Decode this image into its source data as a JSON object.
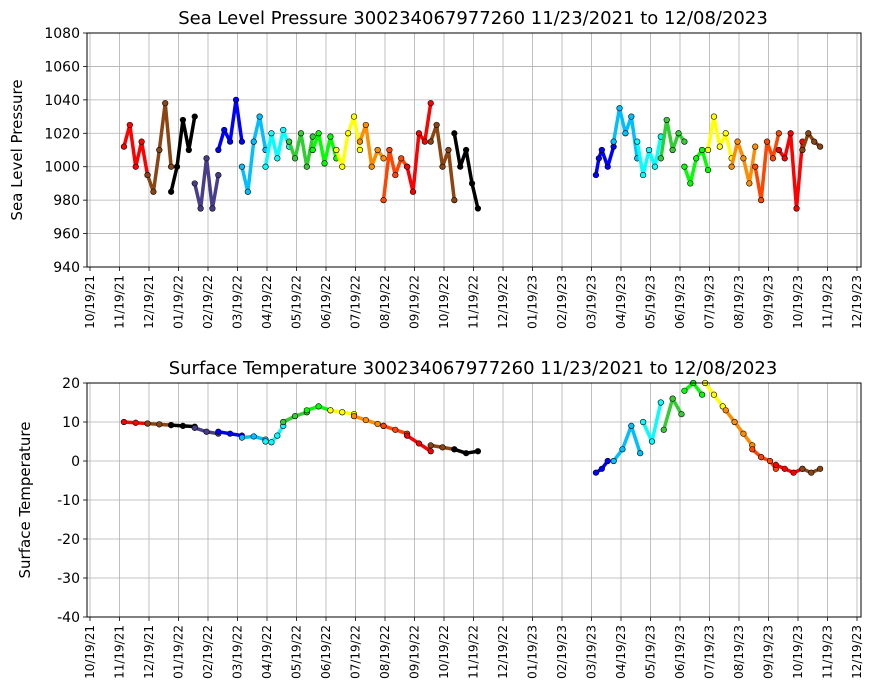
{
  "chart_data": [
    {
      "type": "scatter",
      "title": "Sea Level Pressure 300234067977260  11/23/2021 to 12/08/2023",
      "xlabel": "",
      "ylabel": "Sea Level Pressure",
      "xticks": [
        "10/19/21",
        "11/19/21",
        "12/19/21",
        "01/19/22",
        "02/19/22",
        "03/19/22",
        "04/19/22",
        "05/19/22",
        "06/19/22",
        "07/19/22",
        "08/19/22",
        "09/19/22",
        "10/19/22",
        "11/19/22",
        "12/19/22",
        "01/19/23",
        "02/19/23",
        "03/19/23",
        "04/19/23",
        "05/19/23",
        "06/19/23",
        "07/19/23",
        "08/19/23",
        "09/19/23",
        "10/19/23",
        "11/19/23",
        "12/19/23"
      ],
      "yticks": [
        940,
        960,
        980,
        1000,
        1020,
        1040,
        1060,
        1080
      ],
      "ylim": [
        940,
        1080
      ],
      "grid": true,
      "series": [
        {
          "color": "#ff0000",
          "x": [
            0.0,
            0.2,
            0.4,
            0.6,
            0.8
          ],
          "y": [
            1012,
            1025,
            1000,
            1015,
            995
          ]
        },
        {
          "color": "#8b4513",
          "x": [
            0.8,
            1.0,
            1.2,
            1.4,
            1.6
          ],
          "y": [
            995,
            985,
            1010,
            1038,
            1000
          ]
        },
        {
          "color": "#000000",
          "x": [
            1.6,
            1.8,
            2.0,
            2.2,
            2.4
          ],
          "y": [
            985,
            1000,
            1028,
            1010,
            1030
          ]
        },
        {
          "color": "#483d8b",
          "x": [
            2.4,
            2.6,
            2.8,
            3.0,
            3.2
          ],
          "y": [
            990,
            975,
            1005,
            975,
            995
          ]
        },
        {
          "color": "#0000ff",
          "x": [
            3.2,
            3.4,
            3.6,
            3.8,
            4.0
          ],
          "y": [
            1010,
            1022,
            1015,
            1040,
            1015
          ]
        },
        {
          "color": "#00bfff",
          "x": [
            4.0,
            4.2,
            4.4,
            4.6,
            4.8
          ],
          "y": [
            1000,
            985,
            1015,
            1030,
            1010
          ]
        },
        {
          "color": "#00ffff",
          "x": [
            4.8,
            5.0,
            5.2,
            5.4,
            5.6
          ],
          "y": [
            1000,
            1020,
            1005,
            1022,
            1012
          ]
        },
        {
          "color": "#32cd32",
          "x": [
            5.6,
            5.8,
            6.0,
            6.2,
            6.4
          ],
          "y": [
            1015,
            1005,
            1020,
            1000,
            1018
          ]
        },
        {
          "color": "#00ff00",
          "x": [
            6.4,
            6.6,
            6.8,
            7.0,
            7.2
          ],
          "y": [
            1010,
            1020,
            1002,
            1018,
            1005
          ]
        },
        {
          "color": "#ffff00",
          "x": [
            7.2,
            7.4,
            7.6,
            7.8,
            8.0
          ],
          "y": [
            1010,
            1000,
            1020,
            1030,
            1010
          ]
        },
        {
          "color": "#ff8c00",
          "x": [
            8.0,
            8.2,
            8.4,
            8.6,
            8.8
          ],
          "y": [
            1015,
            1025,
            1000,
            1010,
            1005
          ]
        },
        {
          "color": "#ff4500",
          "x": [
            8.8,
            9.0,
            9.2,
            9.4,
            9.6
          ],
          "y": [
            980,
            1010,
            995,
            1005,
            1000
          ]
        },
        {
          "color": "#ff0000",
          "x": [
            9.6,
            9.8,
            10.0,
            10.2,
            10.4
          ],
          "y": [
            1000,
            985,
            1020,
            1015,
            1038
          ]
        },
        {
          "color": "#8b4513",
          "x": [
            10.4,
            10.6,
            10.8,
            11.0,
            11.2
          ],
          "y": [
            1015,
            1025,
            1000,
            1010,
            980
          ]
        },
        {
          "color": "#000000",
          "x": [
            11.2,
            11.4,
            11.6,
            11.8,
            12.0
          ],
          "y": [
            1020,
            1000,
            1010,
            990,
            975
          ]
        },
        {
          "color": "#0000ff",
          "x": [
            16.0,
            16.1,
            16.2,
            16.4,
            16.6
          ],
          "y": [
            995,
            1005,
            1010,
            1000,
            1012
          ]
        },
        {
          "color": "#00bfff",
          "x": [
            16.6,
            16.8,
            17.0,
            17.2,
            17.4
          ],
          "y": [
            1015,
            1035,
            1020,
            1030,
            1005
          ]
        },
        {
          "color": "#00ffff",
          "x": [
            17.4,
            17.6,
            17.8,
            18.0,
            18.2
          ],
          "y": [
            1015,
            995,
            1010,
            1000,
            1018
          ]
        },
        {
          "color": "#32cd32",
          "x": [
            18.2,
            18.4,
            18.6,
            18.8,
            19.0
          ],
          "y": [
            1005,
            1028,
            1010,
            1020,
            1015
          ]
        },
        {
          "color": "#00ff00",
          "x": [
            19.0,
            19.2,
            19.4,
            19.6,
            19.8
          ],
          "y": [
            1000,
            990,
            1005,
            1010,
            998
          ]
        },
        {
          "color": "#ffff00",
          "x": [
            19.8,
            20.0,
            20.2,
            20.4,
            20.6
          ],
          "y": [
            1010,
            1030,
            1012,
            1020,
            1005
          ]
        },
        {
          "color": "#ff8c00",
          "x": [
            20.6,
            20.8,
            21.0,
            21.2,
            21.4
          ],
          "y": [
            1000,
            1015,
            1005,
            990,
            1012
          ]
        },
        {
          "color": "#ff4500",
          "x": [
            21.4,
            21.6,
            21.8,
            22.0,
            22.2
          ],
          "y": [
            1000,
            980,
            1015,
            1005,
            1020
          ]
        },
        {
          "color": "#ff0000",
          "x": [
            22.2,
            22.4,
            22.6,
            22.8,
            23.0
          ],
          "y": [
            1010,
            1005,
            1020,
            975,
            1015
          ]
        },
        {
          "color": "#8b4513",
          "x": [
            23.0,
            23.2,
            23.4,
            23.6
          ],
          "y": [
            1010,
            1020,
            1015,
            1012
          ]
        }
      ]
    },
    {
      "type": "scatter",
      "title": "Surface Temperature 300234067977260  11/23/2021 to 12/08/2023",
      "xlabel": "",
      "ylabel": "Surface Temperature",
      "xticks": [
        "10/19/21",
        "11/19/21",
        "12/19/21",
        "01/19/22",
        "02/19/22",
        "03/19/22",
        "04/19/22",
        "05/19/22",
        "06/19/22",
        "07/19/22",
        "08/19/22",
        "09/19/22",
        "10/19/22",
        "11/19/22",
        "12/19/22",
        "01/19/23",
        "02/19/23",
        "03/19/23",
        "04/19/23",
        "05/19/23",
        "06/19/23",
        "07/19/23",
        "08/19/23",
        "09/19/23",
        "10/19/23",
        "11/19/23",
        "12/19/23"
      ],
      "yticks": [
        -40,
        -30,
        -20,
        -10,
        0,
        10,
        20
      ],
      "ylim": [
        -40,
        20
      ],
      "grid": true,
      "series": [
        {
          "color": "#ff0000",
          "x": [
            0.0,
            0.4,
            0.8
          ],
          "y": [
            10,
            9.8,
            9.6
          ]
        },
        {
          "color": "#8b4513",
          "x": [
            0.8,
            1.2,
            1.6
          ],
          "y": [
            9.6,
            9.4,
            9.2
          ]
        },
        {
          "color": "#000000",
          "x": [
            1.6,
            2.0,
            2.4
          ],
          "y": [
            9.2,
            9.0,
            8.8
          ]
        },
        {
          "color": "#483d8b",
          "x": [
            2.4,
            2.8,
            3.2
          ],
          "y": [
            8.5,
            7.5,
            7.0
          ]
        },
        {
          "color": "#0000ff",
          "x": [
            3.2,
            3.6,
            4.0
          ],
          "y": [
            7.5,
            7.0,
            6.5
          ]
        },
        {
          "color": "#00bfff",
          "x": [
            4.0,
            4.4,
            4.8
          ],
          "y": [
            6.0,
            6.3,
            5.5
          ]
        },
        {
          "color": "#00ffff",
          "x": [
            4.8,
            5.0,
            5.2,
            5.4
          ],
          "y": [
            5.0,
            4.8,
            6.5,
            9.0
          ]
        },
        {
          "color": "#32cd32",
          "x": [
            5.4,
            5.8,
            6.2
          ],
          "y": [
            10,
            11.5,
            12.5
          ]
        },
        {
          "color": "#00ff00",
          "x": [
            6.2,
            6.6,
            7.0
          ],
          "y": [
            13,
            14,
            13
          ]
        },
        {
          "color": "#ffff00",
          "x": [
            7.0,
            7.4,
            7.8
          ],
          "y": [
            13,
            12.5,
            12
          ]
        },
        {
          "color": "#ff8c00",
          "x": [
            7.8,
            8.2,
            8.6,
            8.8
          ],
          "y": [
            11.5,
            10.5,
            9.5,
            9.0
          ]
        },
        {
          "color": "#ff4500",
          "x": [
            8.8,
            9.2,
            9.6
          ],
          "y": [
            9.0,
            8.0,
            7.0
          ]
        },
        {
          "color": "#ff0000",
          "x": [
            9.6,
            10.0,
            10.4
          ],
          "y": [
            6.5,
            4.5,
            2.5
          ]
        },
        {
          "color": "#8b4513",
          "x": [
            10.4,
            10.8,
            11.2
          ],
          "y": [
            4.0,
            3.5,
            3.0
          ]
        },
        {
          "color": "#000000",
          "x": [
            11.2,
            11.6,
            12.0
          ],
          "y": [
            3.0,
            2.0,
            2.5
          ]
        },
        {
          "color": "#0000ff",
          "x": [
            16.0,
            16.2,
            16.4
          ],
          "y": [
            -3,
            -2,
            0
          ]
        },
        {
          "color": "#00bfff",
          "x": [
            16.6,
            16.9,
            17.2,
            17.5
          ],
          "y": [
            0,
            3,
            9,
            2
          ]
        },
        {
          "color": "#00ffff",
          "x": [
            17.6,
            17.9,
            18.2
          ],
          "y": [
            10,
            5,
            15
          ]
        },
        {
          "color": "#32cd32",
          "x": [
            18.3,
            18.6,
            18.9
          ],
          "y": [
            8,
            16,
            12
          ]
        },
        {
          "color": "#00ff00",
          "x": [
            19.0,
            19.3,
            19.6
          ],
          "y": [
            18,
            20,
            17
          ]
        },
        {
          "color": "#ffff00",
          "x": [
            19.7,
            20.0,
            20.3
          ],
          "y": [
            20,
            17,
            14
          ]
        },
        {
          "color": "#ff8c00",
          "x": [
            20.4,
            20.7,
            21.0,
            21.3
          ],
          "y": [
            13,
            10,
            7,
            4
          ]
        },
        {
          "color": "#ff4500",
          "x": [
            21.3,
            21.6,
            21.9,
            22.1
          ],
          "y": [
            3,
            1,
            0,
            -2
          ]
        },
        {
          "color": "#ff0000",
          "x": [
            22.1,
            22.4,
            22.7,
            23.0
          ],
          "y": [
            -1,
            -2,
            -3,
            -2
          ]
        },
        {
          "color": "#8b4513",
          "x": [
            23.0,
            23.3,
            23.6
          ],
          "y": [
            -2,
            -3,
            -2
          ]
        }
      ]
    }
  ]
}
